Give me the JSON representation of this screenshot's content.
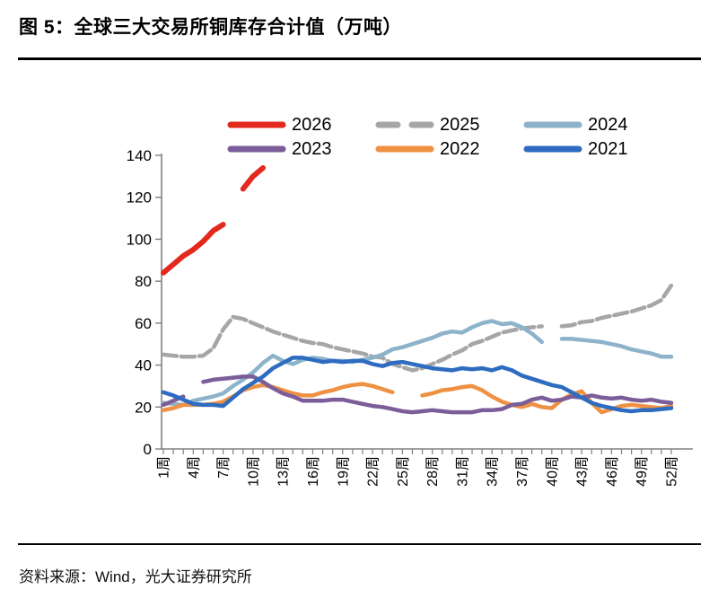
{
  "report": {
    "title": "图 5：全球三大交易所铜库存合计值（万吨）",
    "source": "资料来源：Wind，光大证券研究所"
  },
  "chart_data": {
    "type": "line",
    "title": "全球三大交易所铜库存合计值（万吨）",
    "xlabel": "",
    "ylabel": "",
    "x_unit": "周",
    "weeks": 52,
    "x_tick_labels": [
      "1周",
      "4周",
      "7周",
      "10周",
      "13周",
      "16周",
      "19周",
      "22周",
      "25周",
      "28周",
      "31周",
      "34周",
      "37周",
      "40周",
      "43周",
      "46周",
      "49周",
      "52周"
    ],
    "x_tick_step": 3,
    "ylim": [
      0,
      140
    ],
    "y_ticks": [
      0,
      20,
      40,
      60,
      80,
      100,
      120,
      140
    ],
    "grid": false,
    "legend_position": "top",
    "axis_color": "#808080",
    "series": [
      {
        "name": "2026",
        "color": "#e3281e",
        "dash": "solid",
        "width": 6,
        "values": [
          84,
          88,
          92,
          95,
          99,
          104,
          107,
          null,
          124,
          130,
          134,
          null,
          null,
          null,
          null,
          null,
          null,
          null,
          null,
          null,
          null,
          null,
          null,
          null,
          null,
          null,
          null,
          null,
          null,
          null,
          null,
          null,
          null,
          null,
          null,
          null,
          null,
          null,
          null,
          null,
          null,
          null,
          null,
          null,
          null,
          null,
          null,
          null,
          null,
          null,
          null,
          null
        ]
      },
      {
        "name": "2025",
        "color": "#a6a6a6",
        "dash": "dashed",
        "width": 4.5,
        "values": [
          45,
          44.5,
          44,
          44,
          44.5,
          48,
          57,
          63,
          62,
          60,
          58,
          56,
          54.5,
          53,
          51.5,
          50.5,
          50,
          48.5,
          47.5,
          46.5,
          45.5,
          44,
          43.5,
          40.5,
          39,
          37.5,
          38.5,
          40.5,
          42.5,
          45,
          47,
          50,
          51.5,
          53.5,
          55.5,
          56.5,
          57.5,
          58,
          58.5,
          null,
          58.5,
          59,
          60.5,
          61,
          62.5,
          63.5,
          64.5,
          65.5,
          67,
          68.5,
          71,
          78
        ]
      },
      {
        "name": "2024",
        "color": "#8db3cb",
        "dash": "solid",
        "width": 4.5,
        "values": [
          22,
          21.5,
          21,
          23,
          24,
          25,
          26.5,
          30,
          33,
          36.5,
          41,
          44.5,
          42,
          40.5,
          42.5,
          43.5,
          43,
          42,
          42,
          41.5,
          42.5,
          43.5,
          45,
          47.5,
          48.5,
          50,
          51.5,
          53,
          55,
          56,
          55.5,
          58,
          60,
          61,
          59.5,
          60,
          58,
          55,
          51,
          null,
          52.5,
          52.5,
          52,
          51.5,
          51,
          50,
          49,
          47.5,
          46.5,
          45.5,
          44,
          44
        ]
      },
      {
        "name": "2023",
        "color": "#7b5d99",
        "dash": "solid",
        "width": 4.5,
        "values": [
          21,
          23,
          25,
          null,
          32,
          33,
          33.5,
          34,
          34.5,
          34.5,
          32,
          29,
          26.5,
          25,
          23,
          23,
          23,
          23.5,
          23.5,
          22.5,
          21.5,
          20.5,
          20,
          19,
          18,
          17.5,
          18,
          18.5,
          18,
          17.5,
          17.5,
          17.5,
          18.5,
          18.5,
          19,
          21,
          21.5,
          23.5,
          24.5,
          23,
          23.5,
          25,
          24.5,
          25.5,
          24.5,
          24,
          24.5,
          23.5,
          23,
          23.5,
          22.5,
          22
        ]
      },
      {
        "name": "2022",
        "color": "#ef9143",
        "dash": "solid",
        "width": 4.5,
        "values": [
          18.5,
          19.5,
          21,
          21,
          21,
          21.5,
          22.5,
          25,
          28,
          29.5,
          30.5,
          29.5,
          28,
          26.5,
          25.5,
          25.5,
          27,
          28,
          29.5,
          30.5,
          31,
          30,
          28.5,
          27,
          null,
          null,
          25.5,
          26.5,
          28,
          28.5,
          29.5,
          30,
          28,
          25,
          22.5,
          21,
          20,
          21.5,
          20,
          19.5,
          23.5,
          26,
          27.5,
          22,
          17.5,
          19,
          20.5,
          21,
          20.5,
          20,
          19.5,
          20.5
        ]
      },
      {
        "name": "2021",
        "color": "#2d6cc0",
        "dash": "solid",
        "width": 4.5,
        "values": [
          27,
          25.5,
          23.5,
          21.5,
          21,
          21,
          20.5,
          24.5,
          28.5,
          31.5,
          34.5,
          38.5,
          41,
          43.5,
          43.5,
          42.5,
          41.5,
          42,
          41.5,
          42,
          42,
          40.5,
          39.5,
          41,
          41.5,
          40.5,
          39.5,
          38.5,
          38,
          37.5,
          38.5,
          38,
          38.5,
          37.5,
          39,
          37.5,
          35,
          33.5,
          32,
          30.5,
          29.5,
          27,
          24.5,
          22,
          20.5,
          19.5,
          18.5,
          18,
          18.5,
          18.5,
          19,
          19.5
        ]
      }
    ]
  }
}
